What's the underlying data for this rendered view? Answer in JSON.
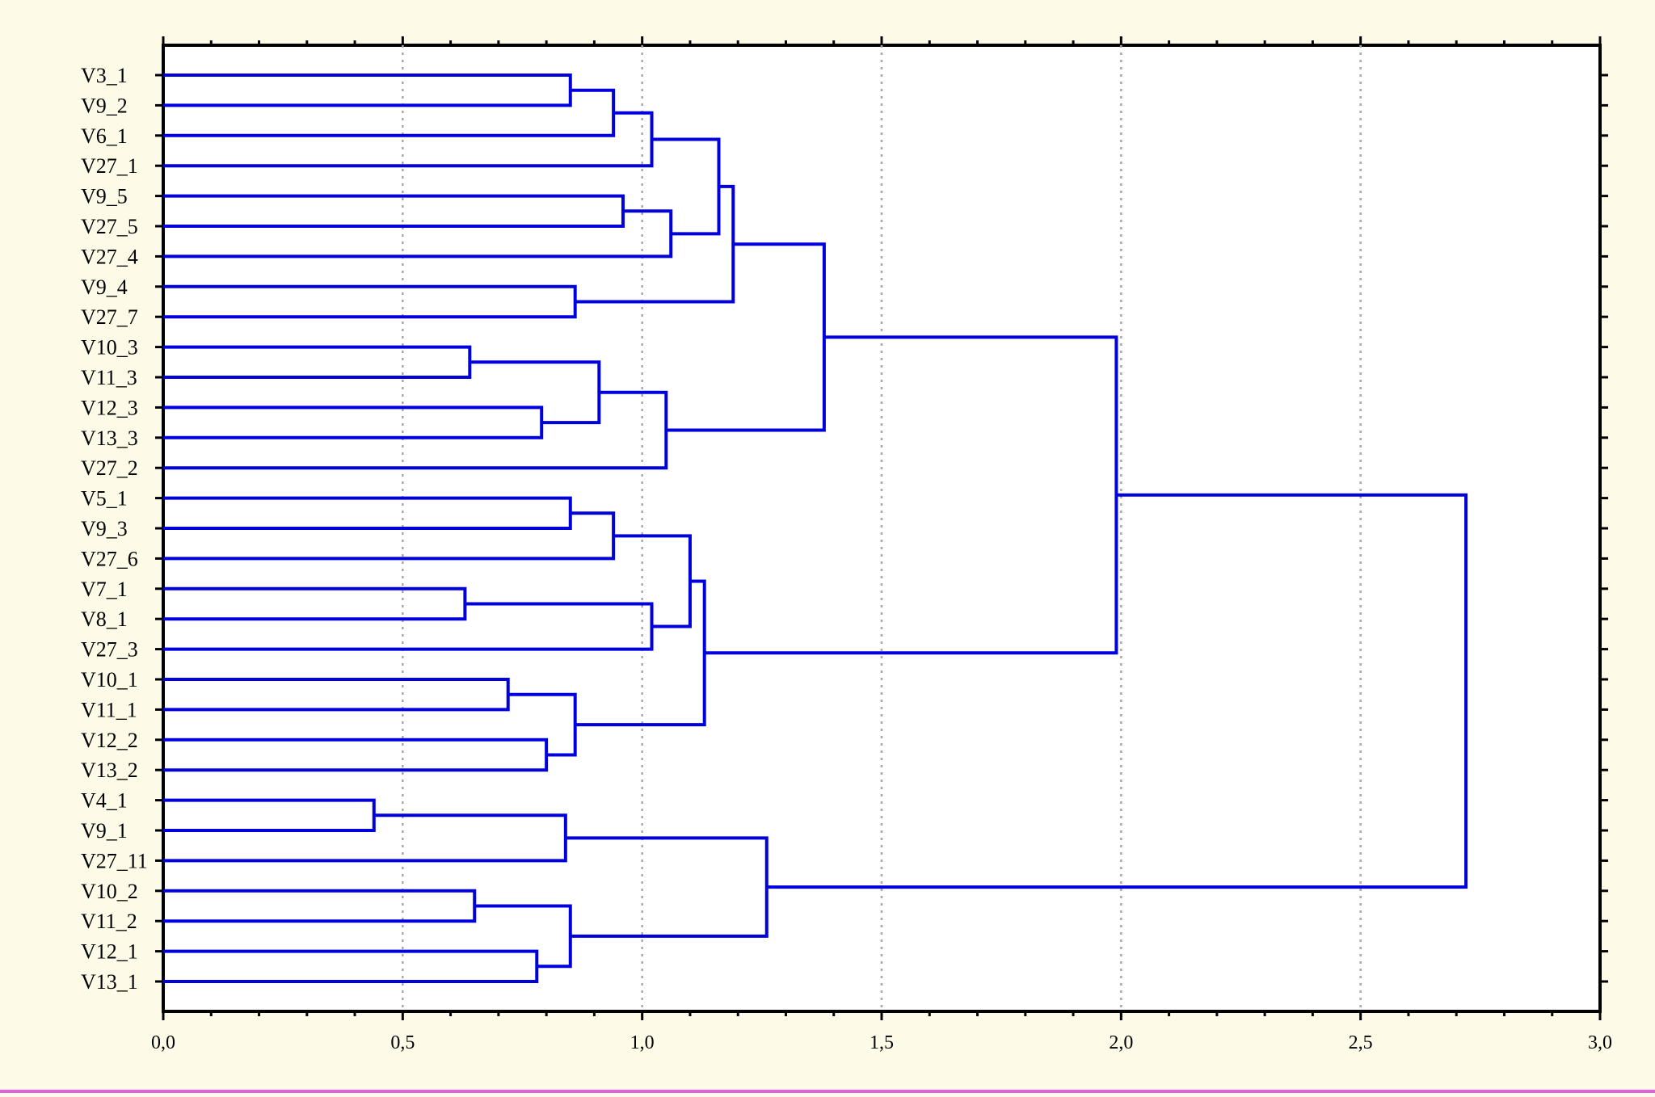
{
  "chart_data": {
    "type": "dendrogram",
    "orientation": "horizontal",
    "title": "",
    "xlabel": "",
    "ylabel": "",
    "xlim": [
      0,
      3
    ],
    "x_ticks": [
      0,
      0.5,
      1,
      1.5,
      2,
      2.5,
      3
    ],
    "x_tick_labels": [
      "0,0",
      "0,5",
      "1,0",
      "1,5",
      "2,0",
      "2,5",
      "3,0"
    ],
    "grid": "vertical-dotted",
    "line_color": "#0000dd",
    "leaves": [
      "V3_1",
      "V9_2",
      "V6_1",
      "V27_1",
      "V9_5",
      "V27_5",
      "V27_4",
      "V9_4",
      "V27_7",
      "V10_3",
      "V11_3",
      "V12_3",
      "V13_3",
      "V27_2",
      "V5_1",
      "V9_3",
      "V27_6",
      "V7_1",
      "V8_1",
      "V27_3",
      "V10_1",
      "V11_1",
      "V12_2",
      "V13_2",
      "V4_1",
      "V9_1",
      "V27_11",
      "V10_2",
      "V11_2",
      "V12_1",
      "V13_1"
    ],
    "merges": [
      {
        "id": "c1",
        "children": [
          "V3_1",
          "V9_2"
        ],
        "height": 0.85
      },
      {
        "id": "c2",
        "children": [
          "c1",
          "V6_1"
        ],
        "height": 0.94
      },
      {
        "id": "c3",
        "children": [
          "c2",
          "V27_1"
        ],
        "height": 1.02
      },
      {
        "id": "c4",
        "children": [
          "V9_5",
          "V27_5"
        ],
        "height": 0.96
      },
      {
        "id": "c5",
        "children": [
          "c4",
          "V27_4"
        ],
        "height": 1.06
      },
      {
        "id": "c6",
        "children": [
          "c3",
          "c5"
        ],
        "height": 1.16
      },
      {
        "id": "c7",
        "children": [
          "V9_4",
          "V27_7"
        ],
        "height": 0.86
      },
      {
        "id": "c8",
        "children": [
          "c6",
          "c7"
        ],
        "height": 1.19
      },
      {
        "id": "c9",
        "children": [
          "V10_3",
          "V11_3"
        ],
        "height": 0.64
      },
      {
        "id": "c10",
        "children": [
          "V12_3",
          "V13_3"
        ],
        "height": 0.79
      },
      {
        "id": "c11",
        "children": [
          "c9",
          "c10"
        ],
        "height": 0.91
      },
      {
        "id": "c12",
        "children": [
          "c11",
          "V27_2"
        ],
        "height": 1.05
      },
      {
        "id": "c13",
        "children": [
          "c8",
          "c12"
        ],
        "height": 1.38
      },
      {
        "id": "c14",
        "children": [
          "V5_1",
          "V9_3"
        ],
        "height": 0.85
      },
      {
        "id": "c15",
        "children": [
          "c14",
          "V27_6"
        ],
        "height": 0.94
      },
      {
        "id": "c16",
        "children": [
          "V7_1",
          "V8_1"
        ],
        "height": 0.63
      },
      {
        "id": "c17",
        "children": [
          "c16",
          "V27_3"
        ],
        "height": 1.02
      },
      {
        "id": "c18",
        "children": [
          "c15",
          "c17"
        ],
        "height": 1.1
      },
      {
        "id": "c19",
        "children": [
          "V10_1",
          "V11_1"
        ],
        "height": 0.72
      },
      {
        "id": "c20",
        "children": [
          "V12_2",
          "V13_2"
        ],
        "height": 0.8
      },
      {
        "id": "c21",
        "children": [
          "c19",
          "c20"
        ],
        "height": 0.86
      },
      {
        "id": "c22",
        "children": [
          "c18",
          "c21"
        ],
        "height": 1.13
      },
      {
        "id": "c23",
        "children": [
          "c13",
          "c22"
        ],
        "height": 1.99
      },
      {
        "id": "c24",
        "children": [
          "V4_1",
          "V9_1"
        ],
        "height": 0.44
      },
      {
        "id": "c25",
        "children": [
          "c24",
          "V27_11"
        ],
        "height": 0.84
      },
      {
        "id": "c26",
        "children": [
          "V10_2",
          "V11_2"
        ],
        "height": 0.65
      },
      {
        "id": "c27",
        "children": [
          "V12_1",
          "V13_1"
        ],
        "height": 0.78
      },
      {
        "id": "c28",
        "children": [
          "c26",
          "c27"
        ],
        "height": 0.85
      },
      {
        "id": "c29",
        "children": [
          "c25",
          "c28"
        ],
        "height": 1.26
      },
      {
        "id": "c30",
        "children": [
          "c23",
          "c29"
        ],
        "height": 2.72
      }
    ]
  }
}
